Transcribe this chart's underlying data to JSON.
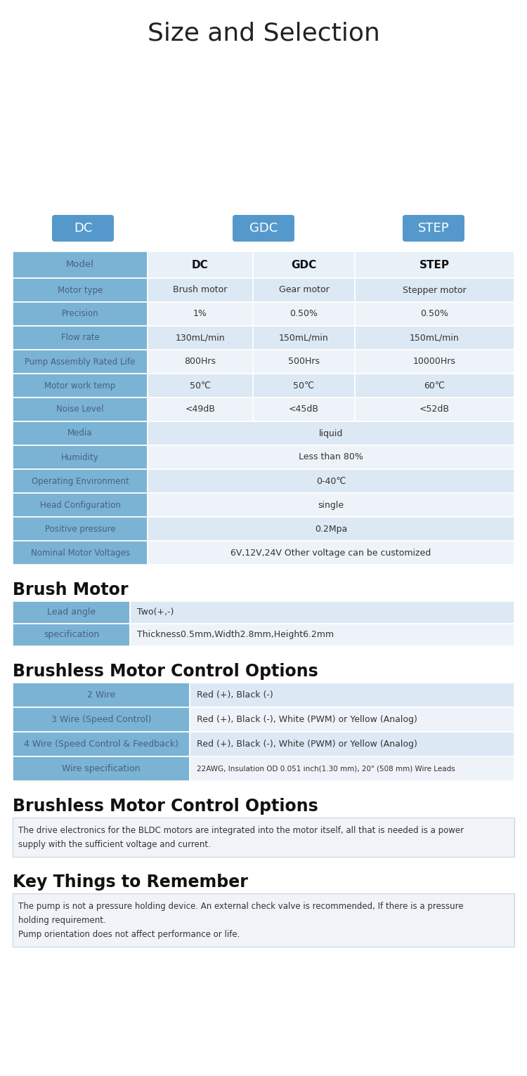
{
  "title": "Size and Selection",
  "bg_color": "#ffffff",
  "label_bg": "#7ab3d4",
  "label_text_color": "#4a6080",
  "badge_color": "#5599cc",
  "main_table": {
    "rows": [
      [
        "Motor type",
        "Brush motor",
        "Gear motor",
        "Stepper motor"
      ],
      [
        "Precision",
        "1%",
        "0.50%",
        "0.50%"
      ],
      [
        "Flow rate",
        "130mL/min",
        "150mL/min",
        "150mL/min"
      ],
      [
        "Pump Assembly Rated Life",
        "800Hrs",
        "500Hrs",
        "10000Hrs"
      ],
      [
        "Motor work temp",
        "50℃",
        "50℃",
        "60℃"
      ],
      [
        "Noise Level",
        "<49dB",
        "<45dB",
        "<52dB"
      ],
      [
        "Media",
        "liquid",
        "",
        ""
      ],
      [
        "Humidity",
        "Less than 80%",
        "",
        ""
      ],
      [
        "Operating Environment",
        "0-40℃",
        "",
        ""
      ],
      [
        "Head Configuration",
        "single",
        "",
        ""
      ],
      [
        "Positive pressure",
        "0.2Mpa",
        "",
        ""
      ],
      [
        "Nominal Motor Voltages",
        "6V,12V,24V Other voltage can be customized",
        "",
        ""
      ]
    ]
  },
  "brush_motor_title": "Brush Motor",
  "brush_motor_rows": [
    [
      "Lead angle",
      "Two(+,-)"
    ],
    [
      "specification",
      "Thickness0.5mm,Width2.8mm,Height6.2mm"
    ]
  ],
  "brushless_title1": "Brushless Motor Control Options",
  "brushless_rows": [
    [
      "2 Wire",
      "Red (+), Black (-)"
    ],
    [
      "3 Wire (Speed Control)",
      "Red (+), Black (-), White (PWM) or Yellow (Analog)"
    ],
    [
      "4 Wire (Speed Control & Feedback)",
      "Red (+), Black (-), White (PWM) or Yellow (Analog)"
    ],
    [
      "Wire specification",
      "22AWG, Insulation OD 0.051 inch(1.30 mm), 20\" (508 mm) Wire Leads"
    ]
  ],
  "brushless_title2": "Brushless Motor Control Options",
  "brushless_desc": "The drive electronics for the BLDC motors are integrated into the motor itself, all that is needed is a power\nsupply with the sufficient voltage and current.",
  "key_title": "Key Things to Remember",
  "key_desc": "The pump is not a pressure holding device. An external check valve is recommended, If there is a pressure\nholding requirement.\nPump orientation does not affect performance or life."
}
